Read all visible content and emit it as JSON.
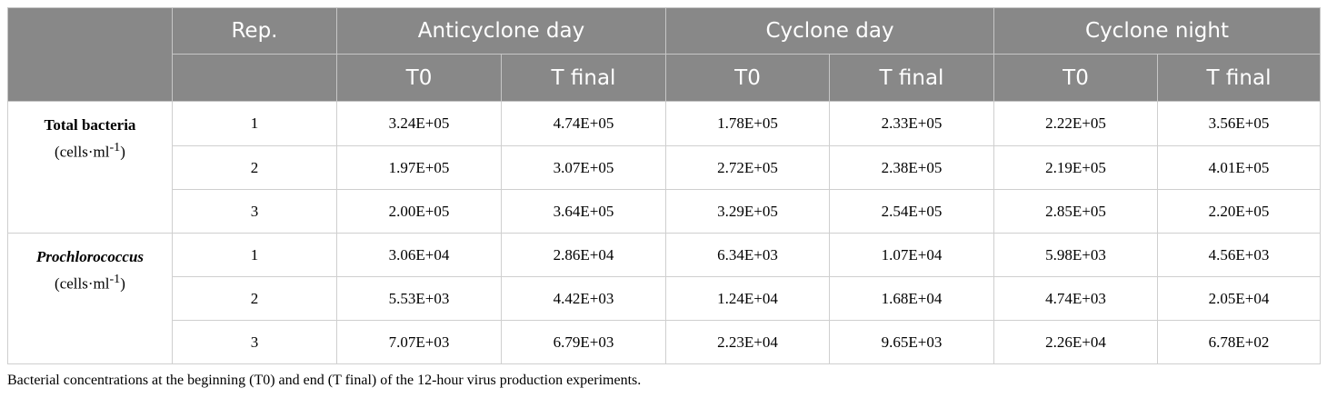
{
  "header": {
    "rep": "Rep.",
    "conditions": [
      "Anticyclone day",
      "Cyclone day",
      "Cyclone night"
    ],
    "times": [
      "T0",
      "T final",
      "T0",
      "T final",
      "T0",
      "T final"
    ]
  },
  "groups": [
    {
      "name": "Total bacteria",
      "unit": "(cells·ml",
      "unit_exp": "-1",
      "unit_close": ")",
      "rows": [
        {
          "rep": "1",
          "values": [
            "3.24E+05",
            "4.74E+05",
            "1.78E+05",
            "2.33E+05",
            "2.22E+05",
            "3.56E+05"
          ]
        },
        {
          "rep": "2",
          "values": [
            "1.97E+05",
            "3.07E+05",
            "2.72E+05",
            "2.38E+05",
            "2.19E+05",
            "4.01E+05"
          ]
        },
        {
          "rep": "3",
          "values": [
            "2.00E+05",
            "3.64E+05",
            "3.29E+05",
            "2.54E+05",
            "2.85E+05",
            "2.20E+05"
          ]
        }
      ]
    },
    {
      "name": "Prochlorococcus",
      "unit": "(cells·ml",
      "unit_exp": "-1",
      "unit_close": ")",
      "rows": [
        {
          "rep": "1",
          "values": [
            "3.06E+04",
            "2.86E+04",
            "6.34E+03",
            "1.07E+04",
            "5.98E+03",
            "4.56E+03"
          ]
        },
        {
          "rep": "2",
          "values": [
            "5.53E+03",
            "4.42E+03",
            "1.24E+04",
            "1.68E+04",
            "4.74E+03",
            "2.05E+04"
          ]
        },
        {
          "rep": "3",
          "values": [
            "7.07E+03",
            "6.79E+03",
            "2.23E+04",
            "9.65E+03",
            "2.26E+04",
            "6.78E+02"
          ]
        }
      ]
    }
  ],
  "caption": "Bacterial concentrations at the beginning (T0) and end (T final) of the 12-hour virus production experiments."
}
